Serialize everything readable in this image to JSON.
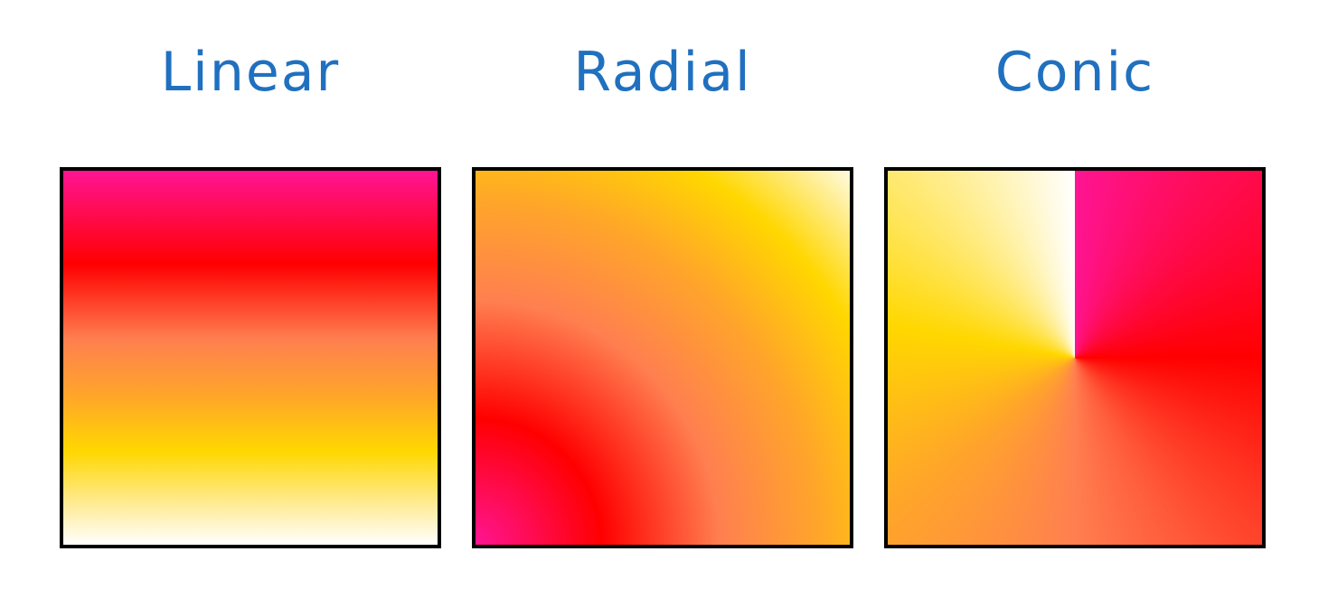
{
  "panels": {
    "linear": {
      "label": "Linear"
    },
    "radial": {
      "label": "Radial"
    },
    "conic": {
      "label": "Conic"
    }
  },
  "colors": {
    "label_text": "#2070c0",
    "border": "#000000",
    "background": "#ffffff",
    "gradient_stops": [
      "#ff1493",
      "#ff0000",
      "#ff7f50",
      "#ffa52a",
      "#ffd700",
      "#ffffff"
    ]
  }
}
